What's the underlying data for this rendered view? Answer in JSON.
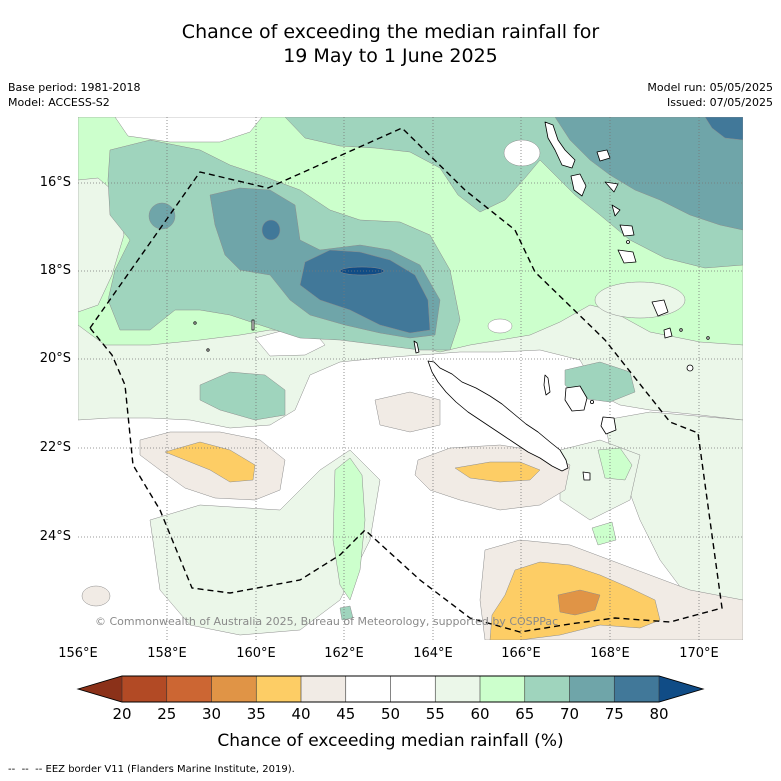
{
  "title": {
    "line1": "Chance of exceeding the median rainfall for",
    "line2": "19 May to 1 June 2025"
  },
  "info_left": {
    "base_period": "Base period: 1981-2018",
    "model": "Model: ACCESS-S2"
  },
  "info_right": {
    "model_run": "Model run: 05/05/2025",
    "issued": "Issued: 07/05/2025"
  },
  "map": {
    "lat_labels": [
      "16°S",
      "18°S",
      "20°S",
      "22°S",
      "24°S"
    ],
    "lon_labels": [
      "156°E",
      "158°E",
      "160°E",
      "162°E",
      "164°E",
      "166°E",
      "168°E",
      "170°E"
    ],
    "copyright": "© Commonwealth of Australia 2025, Bureau of Meteorology, supported by COSPPac"
  },
  "colorbar": {
    "ticks": [
      "20",
      "25",
      "30",
      "35",
      "40",
      "45",
      "50",
      "55",
      "60",
      "65",
      "70",
      "75",
      "80"
    ],
    "under_color": "#8b3119",
    "over_color": "#104c86",
    "colors": [
      "#b24a25",
      "#cc6633",
      "#e09446",
      "#fdcd65",
      "#f1ebe5",
      "#ffffff",
      "#ffffff",
      "#ebf7e9",
      "#ccffcc",
      "#9fd4bd",
      "#6fa5a9",
      "#417899"
    ],
    "label": "Chance of exceeding median rainfall (%)"
  },
  "footer": {
    "eez_note": "--  --  -- EEZ border V11 (Flanders Marine Institute, 2019)."
  }
}
